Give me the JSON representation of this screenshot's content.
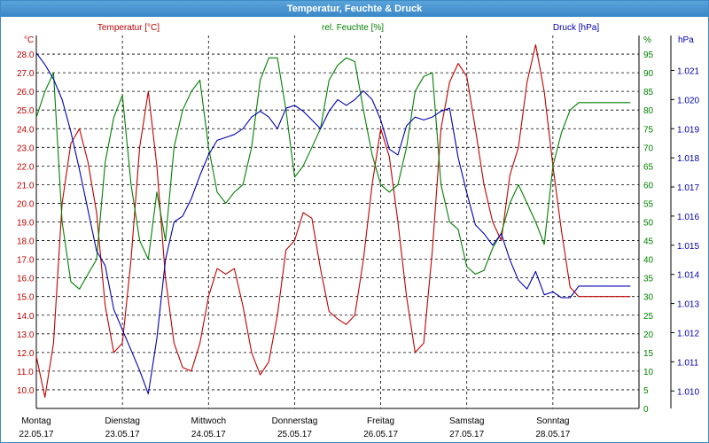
{
  "window": {
    "title": "Temperatur, Feuchte & Druck"
  },
  "colors": {
    "temperature": "#c00000",
    "humidity": "#008000",
    "pressure": "#0000b0",
    "titlebar": "#3a87c8"
  },
  "chart_data": {
    "type": "line",
    "grid": true,
    "x_ticks": [
      {
        "day": "Montag",
        "date": "22.05.17"
      },
      {
        "day": "Dienstag",
        "date": "23.05.17"
      },
      {
        "day": "Mittwoch",
        "date": "24.05.17"
      },
      {
        "day": "Donnerstag",
        "date": "25.05.17"
      },
      {
        "day": "Freitag",
        "date": "26.05.17"
      },
      {
        "day": "Samstag",
        "date": "27.05.17"
      },
      {
        "day": "Sonntag",
        "date": "28.05.17"
      }
    ],
    "axes": {
      "temperature": {
        "label": "Temperatur [°C]",
        "unit": "°C",
        "ylim": [
          9.0,
          29.0
        ],
        "ticks": [
          "10.0",
          "11.0",
          "12.0",
          "13.0",
          "14.0",
          "15.0",
          "16.0",
          "17.0",
          "18.0",
          "19.0",
          "20.0",
          "21.0",
          "22.0",
          "23.0",
          "24.0",
          "25.0",
          "26.0",
          "27.0",
          "28.0"
        ]
      },
      "humidity": {
        "label": "rel. Feuchte [%]",
        "unit": "%",
        "ylim": [
          0,
          100
        ],
        "ticks": [
          "0",
          "5",
          "10",
          "15",
          "20",
          "25",
          "30",
          "35",
          "40",
          "45",
          "50",
          "55",
          "60",
          "65",
          "70",
          "75",
          "80",
          "85",
          "90",
          "95"
        ]
      },
      "pressure": {
        "label": "Druck [hPa]",
        "unit": "hPa",
        "ylim": [
          1.0094,
          1.0222
        ],
        "ticks": [
          "1.010",
          "1.011",
          "1.012",
          "1.013",
          "1.014",
          "1.015",
          "1.016",
          "1.017",
          "1.018",
          "1.019",
          "1.020",
          "1.021"
        ]
      }
    },
    "series": [
      {
        "name": "Temperatur [°C]",
        "axis": "temperature",
        "x": [
          0,
          0.1,
          0.2,
          0.3,
          0.4,
          0.5,
          0.6,
          0.7,
          0.8,
          0.9,
          1,
          1.1,
          1.2,
          1.3,
          1.4,
          1.5,
          1.6,
          1.7,
          1.8,
          1.9,
          2,
          2.1,
          2.2,
          2.3,
          2.4,
          2.5,
          2.6,
          2.7,
          2.8,
          2.9,
          3,
          3.1,
          3.2,
          3.3,
          3.4,
          3.5,
          3.6,
          3.7,
          3.8,
          3.9,
          4,
          4.1,
          4.2,
          4.3,
          4.4,
          4.5,
          4.6,
          4.7,
          4.8,
          4.9,
          5,
          5.1,
          5.2,
          5.3,
          5.4,
          5.5,
          5.6,
          5.7,
          5.8,
          5.9,
          6,
          6.1,
          6.2,
          6.3,
          6.4,
          6.5,
          6.6,
          6.7,
          6.8,
          6.9
        ],
        "values": [
          11.8,
          9.6,
          12.5,
          20.0,
          23.2,
          24.0,
          22.2,
          19.5,
          14.5,
          12.0,
          12.5,
          17.0,
          23.0,
          26.0,
          22.0,
          16.0,
          12.5,
          11.2,
          11.0,
          12.5,
          15.0,
          16.5,
          16.2,
          16.5,
          14.5,
          12.0,
          10.8,
          11.5,
          14.0,
          17.5,
          18.0,
          19.5,
          19.2,
          16.5,
          14.2,
          13.8,
          13.5,
          14.0,
          17.0,
          21.0,
          24.0,
          22.5,
          19.0,
          15.0,
          12.0,
          12.5,
          17.5,
          24.0,
          26.5,
          27.5,
          26.8,
          24.0,
          21.0,
          19.0,
          18.0,
          21.5,
          23.0,
          26.5,
          28.5,
          26.0,
          22.0,
          18.5,
          15.5,
          15.0,
          15.0,
          15.0,
          15.0,
          15.0,
          15.0,
          15.0
        ]
      },
      {
        "name": "rel. Feuchte [%]",
        "axis": "humidity",
        "x": [
          0,
          0.1,
          0.2,
          0.3,
          0.4,
          0.5,
          0.6,
          0.7,
          0.8,
          0.9,
          1,
          1.1,
          1.2,
          1.3,
          1.4,
          1.5,
          1.6,
          1.7,
          1.8,
          1.9,
          2,
          2.1,
          2.2,
          2.3,
          2.4,
          2.5,
          2.6,
          2.7,
          2.8,
          2.9,
          3,
          3.1,
          3.2,
          3.3,
          3.4,
          3.5,
          3.6,
          3.7,
          3.8,
          3.9,
          4,
          4.1,
          4.2,
          4.3,
          4.4,
          4.5,
          4.6,
          4.7,
          4.8,
          4.9,
          5,
          5.1,
          5.2,
          5.3,
          5.4,
          5.5,
          5.6,
          5.7,
          5.8,
          5.9,
          6,
          6.1,
          6.2,
          6.3,
          6.4,
          6.5,
          6.6,
          6.7,
          6.8,
          6.9
        ],
        "values": [
          78,
          85,
          90,
          50,
          34,
          32,
          36,
          40,
          66,
          78,
          84,
          60,
          45,
          40,
          58,
          45,
          70,
          80,
          85,
          88,
          70,
          58,
          55,
          58,
          60,
          70,
          88,
          94,
          94,
          80,
          62,
          65,
          70,
          75,
          88,
          92,
          94,
          93,
          80,
          68,
          60,
          58,
          60,
          70,
          85,
          89,
          90,
          60,
          50,
          48,
          38,
          36,
          37,
          43,
          47,
          55,
          60,
          55,
          50,
          44,
          65,
          74,
          80,
          82,
          82,
          82,
          82,
          82,
          82,
          82
        ]
      },
      {
        "name": "Druck [hPa]",
        "axis": "pressure",
        "x": [
          0,
          0.1,
          0.2,
          0.3,
          0.4,
          0.5,
          0.6,
          0.7,
          0.8,
          0.9,
          1,
          1.1,
          1.2,
          1.3,
          1.4,
          1.5,
          1.6,
          1.7,
          1.8,
          1.9,
          2,
          2.1,
          2.2,
          2.3,
          2.4,
          2.5,
          2.6,
          2.7,
          2.8,
          2.9,
          3,
          3.1,
          3.2,
          3.3,
          3.4,
          3.5,
          3.6,
          3.7,
          3.8,
          3.9,
          4,
          4.1,
          4.2,
          4.3,
          4.4,
          4.5,
          4.6,
          4.7,
          4.8,
          4.9,
          5,
          5.1,
          5.2,
          5.3,
          5.4,
          5.5,
          5.6,
          5.7,
          5.8,
          5.9,
          6,
          6.1,
          6.2,
          6.3,
          6.4,
          6.5,
          6.6,
          6.7,
          6.8,
          6.9
        ],
        "values": [
          1.0216,
          1.0212,
          1.0207,
          1.02,
          1.0189,
          1.0176,
          1.0162,
          1.0148,
          1.0143,
          1.0128,
          1.0121,
          1.0114,
          1.0107,
          1.0099,
          1.0118,
          1.0145,
          1.0158,
          1.016,
          1.0166,
          1.0174,
          1.0181,
          1.0186,
          1.0187,
          1.0188,
          1.019,
          1.0194,
          1.0196,
          1.0194,
          1.019,
          1.0197,
          1.0198,
          1.0196,
          1.0193,
          1.019,
          1.0196,
          1.02,
          1.0198,
          1.02,
          1.0203,
          1.02,
          1.0193,
          1.0183,
          1.0181,
          1.0191,
          1.0194,
          1.0193,
          1.0194,
          1.0196,
          1.0197,
          1.018,
          1.0168,
          1.0157,
          1.0154,
          1.015,
          1.0154,
          1.0145,
          1.0138,
          1.0135,
          1.0141,
          1.0133,
          1.0134,
          1.0132,
          1.0132,
          1.0136,
          1.0136,
          1.0136,
          1.0136,
          1.0136,
          1.0136,
          1.0136
        ]
      }
    ]
  }
}
